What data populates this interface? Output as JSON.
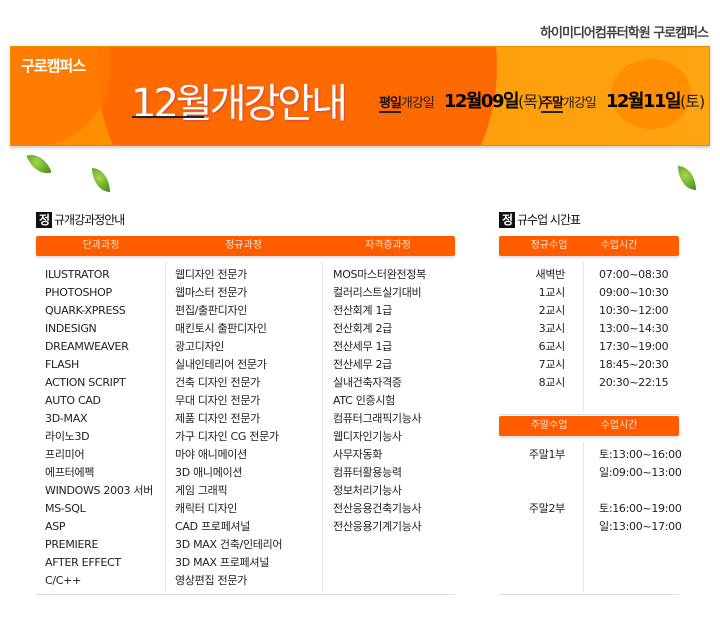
{
  "brand": "하이미디어컴퓨터학원 구로캠퍼스",
  "banner": {
    "campus": "구로캠퍼스",
    "title": "12월개강안내",
    "weekday": {
      "label_bold": "평일",
      "label": "개강일",
      "date": "12월09일",
      "day": "(목)"
    },
    "weekend": {
      "label_bold": "주말",
      "label": "개강일",
      "date": "12월11일",
      "day": "(토)"
    }
  },
  "courses": {
    "title_icon": "정",
    "title": "규개강과정안내",
    "headers": [
      "단과과정",
      "정규과정",
      "자격증과정"
    ],
    "single": [
      "ILUSTRATOR",
      "PHOTOSHOP",
      "QUARK-XPRESS",
      "INDESIGN",
      "DREAMWEAVER",
      "FLASH",
      "ACTION SCRIPT",
      "AUTO CAD",
      "3D-MAX",
      "라이노3D",
      "프리미어",
      "에프터에펙",
      "WINDOWS 2003 서버",
      "MS-SQL",
      "ASP",
      "PREMIERE",
      "AFTER EFFECT",
      "C/C++"
    ],
    "regular": [
      "웹디자인 전문가",
      "웹마스터 전문가",
      "편집/출판디자인",
      "매킨토시 출판디자인",
      "광고디자인",
      "실내인테리어 전문가",
      "건축 디자인 전문가",
      "무대 디자인 전문가",
      "제품 디자인 전문가",
      "가구 디자인 CG 전문가",
      "마야 애니메이션",
      "3D 애니메이션",
      "게임 그래픽",
      "캐릭터 디자인",
      "CAD 프로페셔널",
      "3D MAX 건축/인테리어",
      "3D MAX 프로페셔널",
      "영상편집 전문가"
    ],
    "cert": [
      "MOS마스터완전정복",
      "컬러리스트실기대비",
      "전산회계 1급",
      "전산회계 2급",
      "전산세무 1급",
      "전산세무 2급",
      "실내건축자격증",
      "ATC 인증시험",
      "컴퓨터그래픽기능사",
      "웹디자인기능사",
      "사무자동화",
      "컴퓨터활용능력",
      "정보처리기능사",
      "전산응용건축기능사",
      "전산응용기계기능사"
    ]
  },
  "schedule": {
    "title_icon": "정",
    "title": "규수업 시간표",
    "regular_headers": [
      "정규수업",
      "수업시간"
    ],
    "regular": [
      [
        "새벽반",
        "07:00~08:30"
      ],
      [
        "1교시",
        "09:00~10:30"
      ],
      [
        "2교시",
        "10:30~12:00"
      ],
      [
        "3교시",
        "13:00~14:30"
      ],
      [
        "6교시",
        "17:30~19:00"
      ],
      [
        "7교시",
        "18:45~20:30"
      ],
      [
        "8교시",
        "20:30~22:15"
      ]
    ],
    "weekend_headers": [
      "주말수업",
      "수업시간"
    ],
    "weekend": [
      {
        "name": "주말1부",
        "times": [
          "토:13:00~16:00",
          "일:09:00~13:00"
        ]
      },
      {
        "name": "주말2부",
        "times": [
          "토:16:00~19:00",
          "일:13:00~17:00"
        ]
      }
    ]
  },
  "colors": {
    "accent": "#ff5c00",
    "banner": "#ff9000"
  }
}
